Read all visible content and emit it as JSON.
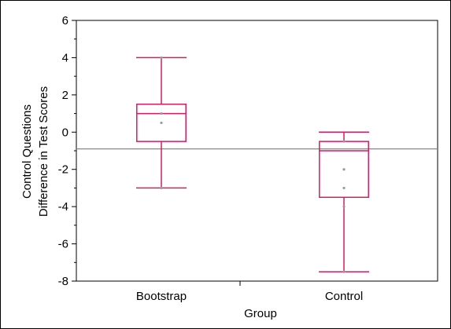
{
  "chart_data": {
    "type": "boxplot",
    "xlabel": "Group",
    "ylabel_lines": [
      "Control Questions",
      "Difference in Test Scores"
    ],
    "ylim": [
      -8,
      6
    ],
    "yticks": [
      "-8",
      "-6",
      "-4",
      "-2",
      "0",
      "2",
      "4",
      "6"
    ],
    "yticks_values": [
      -8,
      -6,
      -4,
      -2,
      0,
      2,
      4,
      6
    ],
    "categories": [
      "Bootstrap",
      "Control"
    ],
    "boxes": [
      {
        "name": "Bootstrap",
        "min": -3,
        "q1": -0.5,
        "median": 1,
        "q3": 1.5,
        "max": 4,
        "points": [
          4,
          1,
          0.5,
          -3
        ]
      },
      {
        "name": "Control",
        "min": -7.5,
        "q1": -3.5,
        "median": -1,
        "q3": -0.5,
        "max": 0,
        "points": [
          -0.5,
          -2,
          -3,
          -4,
          -7.5
        ]
      }
    ],
    "reference_line": -0.9,
    "box_color": "#d81b60",
    "reference_line_color": "#888888",
    "point_color": "#999999"
  }
}
